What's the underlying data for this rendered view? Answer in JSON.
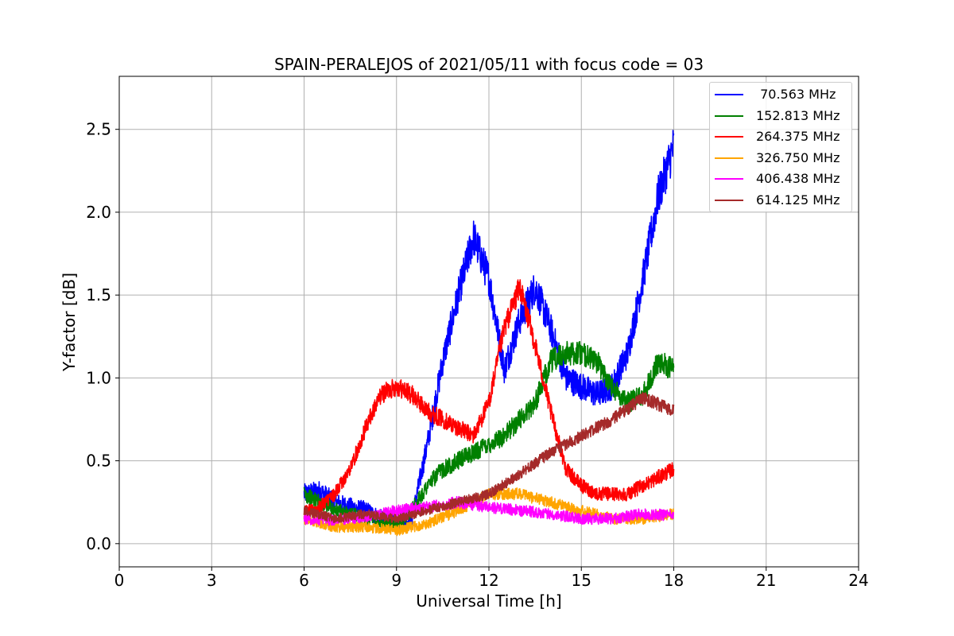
{
  "chart_data": {
    "type": "line",
    "title": "SPAIN-PERALEJOS of 2021/05/11 with focus code = 03",
    "xlabel": "Universal Time [h]",
    "ylabel": "Y-factor [dB]",
    "xlim": [
      0,
      24
    ],
    "ylim": [
      -0.14,
      2.82
    ],
    "xticks": [
      "0",
      "3",
      "6",
      "9",
      "12",
      "15",
      "18",
      "21",
      "24"
    ],
    "yticks": [
      "0.0",
      "0.5",
      "1.0",
      "1.5",
      "2.0",
      "2.5"
    ],
    "grid": true,
    "legend_position": "top-right",
    "series": [
      {
        "name": " 70.563 MHz",
        "color": "#0000ff",
        "x": [
          6,
          6.5,
          7,
          7.5,
          8,
          8.5,
          9,
          9.5,
          10,
          10.5,
          11,
          11.5,
          12,
          12.5,
          13,
          13.5,
          14,
          14.5,
          15,
          15.5,
          16,
          16.5,
          17,
          17.5,
          18
        ],
        "y": [
          0.3,
          0.32,
          0.25,
          0.22,
          0.2,
          0.15,
          0.12,
          0.15,
          0.6,
          1.1,
          1.5,
          1.85,
          1.6,
          1.05,
          1.35,
          1.55,
          1.3,
          1.0,
          0.95,
          0.9,
          0.95,
          1.15,
          1.6,
          2.1,
          2.4
        ],
        "noise": 0.1
      },
      {
        "name": "152.813 MHz",
        "color": "#008000",
        "x": [
          6,
          6.5,
          7,
          7.5,
          8,
          8.5,
          9,
          9.5,
          10,
          10.5,
          11,
          11.5,
          12,
          12.5,
          13,
          13.5,
          14,
          14.5,
          15,
          15.5,
          16,
          16.5,
          17,
          17.5,
          18
        ],
        "y": [
          0.3,
          0.25,
          0.2,
          0.18,
          0.15,
          0.12,
          0.12,
          0.2,
          0.35,
          0.45,
          0.5,
          0.55,
          0.6,
          0.65,
          0.75,
          0.85,
          1.1,
          1.15,
          1.15,
          1.1,
          0.95,
          0.85,
          0.9,
          1.1,
          1.05
        ],
        "noise": 0.08
      },
      {
        "name": "264.375 MHz",
        "color": "#ff0000",
        "x": [
          6,
          6.5,
          7,
          7.5,
          8,
          8.5,
          9,
          9.5,
          10,
          10.5,
          11,
          11.5,
          12,
          12.5,
          13,
          13.5,
          14,
          14.5,
          15,
          15.5,
          16,
          16.5,
          17,
          17.5,
          18
        ],
        "y": [
          0.2,
          0.22,
          0.3,
          0.45,
          0.7,
          0.9,
          0.95,
          0.9,
          0.8,
          0.75,
          0.7,
          0.65,
          0.85,
          1.3,
          1.55,
          1.2,
          0.8,
          0.45,
          0.35,
          0.3,
          0.3,
          0.3,
          0.35,
          0.4,
          0.45
        ],
        "noise": 0.07
      },
      {
        "name": "326.750 MHz",
        "color": "#ffa500",
        "x": [
          6,
          7,
          8,
          9,
          10,
          11,
          12,
          13,
          14,
          15,
          16,
          17,
          18
        ],
        "y": [
          0.15,
          0.1,
          0.1,
          0.08,
          0.12,
          0.2,
          0.3,
          0.3,
          0.25,
          0.2,
          0.15,
          0.15,
          0.18
        ],
        "noise": 0.06
      },
      {
        "name": "406.438 MHz",
        "color": "#ff00ff",
        "x": [
          6,
          7,
          8,
          9,
          10,
          11,
          12,
          13,
          14,
          15,
          16,
          17,
          18
        ],
        "y": [
          0.15,
          0.14,
          0.16,
          0.2,
          0.22,
          0.25,
          0.22,
          0.2,
          0.18,
          0.15,
          0.15,
          0.18,
          0.17
        ],
        "noise": 0.06
      },
      {
        "name": "614.125 MHz",
        "color": "#a52a2a",
        "x": [
          6,
          7,
          8,
          9,
          10,
          11,
          12,
          13,
          14,
          15,
          16,
          17,
          18
        ],
        "y": [
          0.2,
          0.15,
          0.18,
          0.15,
          0.2,
          0.25,
          0.3,
          0.42,
          0.55,
          0.65,
          0.75,
          0.88,
          0.8
        ],
        "noise": 0.05
      }
    ]
  }
}
